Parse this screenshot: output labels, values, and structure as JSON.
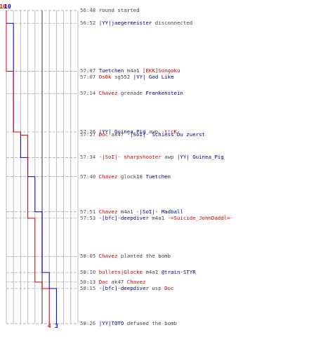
{
  "colors": {
    "team_a": "#0000cc",
    "team_b": "#dd0000",
    "player_red": "#cc0000",
    "player_blue": "#00008b",
    "text": "#444444",
    "grid": "#bbbbbb",
    "midline": "#777777"
  },
  "chart_data": {
    "type": "line",
    "x_ticks": [
      {
        "time": "56:48",
        "dashed": true
      },
      {
        "time": "56:52",
        "dashed": true
      },
      {
        "time": "57:07",
        "dashed": true
      },
      {
        "time": "57:14",
        "dashed": true
      },
      {
        "time": "57:26",
        "dashed": true
      },
      {
        "time": "57:34",
        "dashed": true
      },
      {
        "time": "57:40",
        "dashed": true
      },
      {
        "time": "57:51",
        "dashed": true
      },
      {
        "time": "57:53",
        "dashed": true
      },
      {
        "time": "58:05",
        "dashed": true
      },
      {
        "time": "58:10",
        "dashed": true
      },
      {
        "time": "58:13",
        "dashed": true
      },
      {
        "time": "58:15",
        "dashed": true
      },
      {
        "time": "58:26",
        "dashed": true
      }
    ],
    "series": [
      {
        "color": "#0000cc",
        "start_label": "10",
        "end_label": "3",
        "alive": [
          {
            "time": "56:48",
            "value": 10
          },
          {
            "time": "56:52",
            "value": 9
          },
          {
            "time": "57:26",
            "value": 8
          },
          {
            "time": "57:34",
            "value": 7
          },
          {
            "time": "57:40",
            "value": 6
          },
          {
            "time": "57:51",
            "value": 5
          },
          {
            "time": "58:10",
            "value": 4
          },
          {
            "time": "58:15",
            "value": 3
          },
          {
            "time": "58:26",
            "value": 3
          }
        ]
      },
      {
        "color": "#dd0000",
        "start_label": "10",
        "end_label": "4",
        "alive": [
          {
            "time": "56:48",
            "value": 10
          },
          {
            "time": "57:07",
            "value": 9
          },
          {
            "time": "57:26",
            "value": 8
          },
          {
            "time": "57:27",
            "value": 7
          },
          {
            "time": "57:53",
            "value": 6
          },
          {
            "time": "58:13",
            "value": 5
          },
          {
            "time": "58:15",
            "value": 4
          },
          {
            "time": "58:26",
            "value": 4
          }
        ]
      }
    ],
    "value_range": [
      0,
      10
    ]
  },
  "events": [
    {
      "time": "56:48",
      "parts": [
        {
          "t": "round started",
          "c": "plain"
        }
      ]
    },
    {
      "time": "56:52",
      "parts": [
        {
          "t": "|YY|jaegermeister",
          "c": "blue"
        },
        {
          "t": " disconnected",
          "c": "plain"
        }
      ]
    },
    {
      "time": "57:07",
      "parts": [
        {
          "t": "Tuetchen",
          "c": "blue"
        },
        {
          "t": " m4a1 ",
          "c": "plain"
        },
        {
          "t": "[EKK]Songoku",
          "c": "red"
        }
      ]
    },
    {
      "time": "57:07",
      "parts": [
        {
          "t": "Os0k",
          "c": "red"
        },
        {
          "t": " sg552 ",
          "c": "plain"
        },
        {
          "t": "|YY| God Like",
          "c": "blue"
        }
      ]
    },
    {
      "time": "57:14",
      "parts": [
        {
          "t": "Chavez",
          "c": "red"
        },
        {
          "t": " grenade ",
          "c": "plain"
        },
        {
          "t": "Frankenstein",
          "c": "blue"
        }
      ]
    },
    {
      "time": "57:26",
      "parts": [
        {
          "t": "|YY| Guinea_Pig",
          "c": "blue"
        },
        {
          "t": " awp ",
          "c": "plain"
        },
        {
          "t": "-t!cK-",
          "c": "red"
        }
      ]
    },
    {
      "time": "57:27",
      "parts": [
        {
          "t": "Doc",
          "c": "red"
        },
        {
          "t": " ak47 ",
          "c": "plain"
        },
        {
          "t": "-|SoI|- Schiess Du zuerst",
          "c": "blue"
        }
      ]
    },
    {
      "time": "57:34",
      "parts": [
        {
          "t": "-|SoI|- sharpshooter",
          "c": "red"
        },
        {
          "t": " awp ",
          "c": "plain"
        },
        {
          "t": "|YY| Guinea_Pig",
          "c": "blue"
        }
      ]
    },
    {
      "time": "57:40",
      "parts": [
        {
          "t": "Chavez",
          "c": "red"
        },
        {
          "t": " glock18 ",
          "c": "plain"
        },
        {
          "t": "Tuetchen",
          "c": "blue"
        }
      ]
    },
    {
      "time": "57:51",
      "parts": [
        {
          "t": "Chavez",
          "c": "red"
        },
        {
          "t": " m4a1 ",
          "c": "plain"
        },
        {
          "t": "-|SoI|- Madball",
          "c": "blue"
        }
      ]
    },
    {
      "time": "57:53",
      "parts": [
        {
          "t": "-[bfc]-deepdiver",
          "c": "blue"
        },
        {
          "t": " m4a1 ",
          "c": "plain"
        },
        {
          "t": "-=Suicide_JohnDaddl=-",
          "c": "red"
        }
      ]
    },
    {
      "time": "58:05",
      "parts": [
        {
          "t": "Chavez",
          "c": "red"
        },
        {
          "t": " planted the bomb",
          "c": "plain"
        }
      ]
    },
    {
      "time": "58:10",
      "parts": [
        {
          "t": "bullets|Glocke",
          "c": "red"
        },
        {
          "t": " m4a1 ",
          "c": "plain"
        },
        {
          "t": "@train-STYR",
          "c": "blue"
        }
      ]
    },
    {
      "time": "58:13",
      "parts": [
        {
          "t": "Doc",
          "c": "red"
        },
        {
          "t": " ak47 ",
          "c": "plain"
        },
        {
          "t": "Chavez",
          "c": "red"
        }
      ]
    },
    {
      "time": "58:15",
      "parts": [
        {
          "t": "-[bfc]-deepdiver",
          "c": "blue"
        },
        {
          "t": " usp ",
          "c": "plain"
        },
        {
          "t": "Doc",
          "c": "red"
        }
      ]
    },
    {
      "time": "58:26",
      "parts": [
        {
          "t": "|YY|TOTO",
          "c": "blue"
        },
        {
          "t": " defused the bomb",
          "c": "plain"
        }
      ]
    }
  ]
}
